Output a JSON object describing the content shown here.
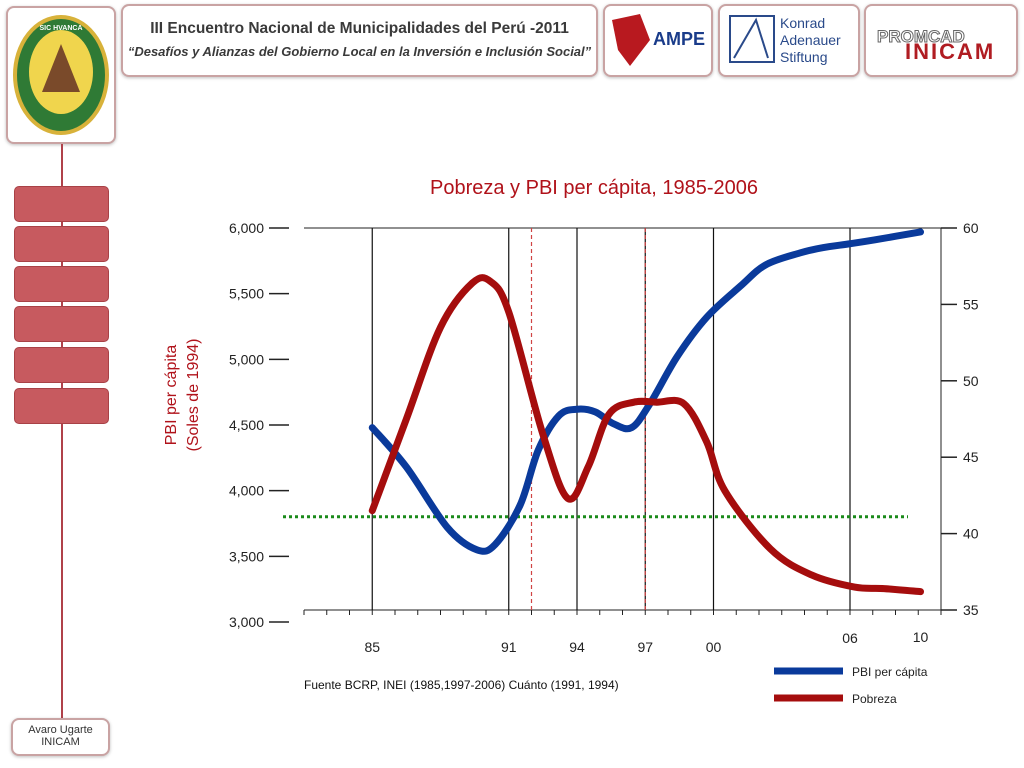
{
  "header": {
    "title_line1": "III Encuentro  Nacional de Municipalidades del Perú -2011",
    "title_line2": "“Desafíos y Alianzas del Gobierno Local en la Inversión e Inclusión Social”"
  },
  "logos": {
    "crest_text": "SIC HVANCA · FERIAM TOTVM · VELICA FVITA",
    "ampe": "AMPE",
    "konrad": [
      "Konrad",
      "Adenauer",
      "Stiftung"
    ],
    "promcad": "PROMCAD",
    "inicam": "INICAM"
  },
  "sidebar": {
    "nav_count": 6
  },
  "author": {
    "line1": "Avaro Ugarte",
    "line2": "INICAM"
  },
  "chart_data": {
    "type": "line",
    "title": "Pobreza y PBI per cápita, 1985-2006",
    "ylabel_left": [
      "PBI per cápita",
      "(Soles de 1994)"
    ],
    "left_ticks": [
      "6,000",
      "5,500",
      "5,000",
      "4,500",
      "4,000",
      "3,500",
      "3,000"
    ],
    "right_ticks": [
      "60",
      "55",
      "50",
      "45",
      "40",
      "35"
    ],
    "x_tick_labels": [
      "85",
      "91",
      "94",
      "97",
      "00",
      "06",
      "10"
    ],
    "ylim_left": [
      3000,
      6000
    ],
    "ylim_right": [
      35,
      60
    ],
    "series": [
      {
        "name": "PBI per cápita",
        "color": "#0a3a9b",
        "axis": "left",
        "x": [
          1985,
          1986.5,
          1988.3,
          1989.6,
          1990.4,
          1991.5,
          1992.3,
          1993.2,
          1994,
          1994.8,
          1995.6,
          1996.4,
          1997.2,
          1998.4,
          1999.7,
          2001.2,
          2002.3,
          2003.8,
          2004.8,
          2006,
          2007.1,
          2009.1
        ],
        "y": [
          4480,
          4180,
          3720,
          3550,
          3590,
          3890,
          4310,
          4570,
          4620,
          4600,
          4510,
          4480,
          4660,
          5020,
          5320,
          5560,
          5720,
          5810,
          5850,
          5880,
          5910,
          5970
        ]
      },
      {
        "name": "Pobreza",
        "color": "#a50d0d",
        "axis": "right",
        "x": [
          1985,
          1986.5,
          1988,
          1989.4,
          1990.2,
          1991,
          1992.5,
          1993.6,
          1994.5,
          1995.4,
          1996.5,
          1997.5,
          1998.7,
          1999.7,
          2000.5,
          2002.5,
          2004.3,
          2006.2,
          2007.5,
          2009.1
        ],
        "y": [
          41.5,
          47.5,
          53.5,
          56.4,
          56.5,
          54.5,
          46.5,
          42.3,
          44.4,
          47.8,
          48.6,
          48.6,
          48.5,
          46,
          42.8,
          39,
          37.3,
          36.5,
          36.4,
          36.2
        ]
      }
    ],
    "reference_line": {
      "y_right": 41.1,
      "color": "#1a8a1a"
    },
    "event_lines": [
      {
        "label": "",
        "x": 1992,
        "color": "#d04444"
      },
      {
        "label": "",
        "x": 1997,
        "color": "#d04444"
      }
    ],
    "source": "Fuente BCRP, INEI (1985,1997-2006) Cuánto (1991, 1994)"
  }
}
